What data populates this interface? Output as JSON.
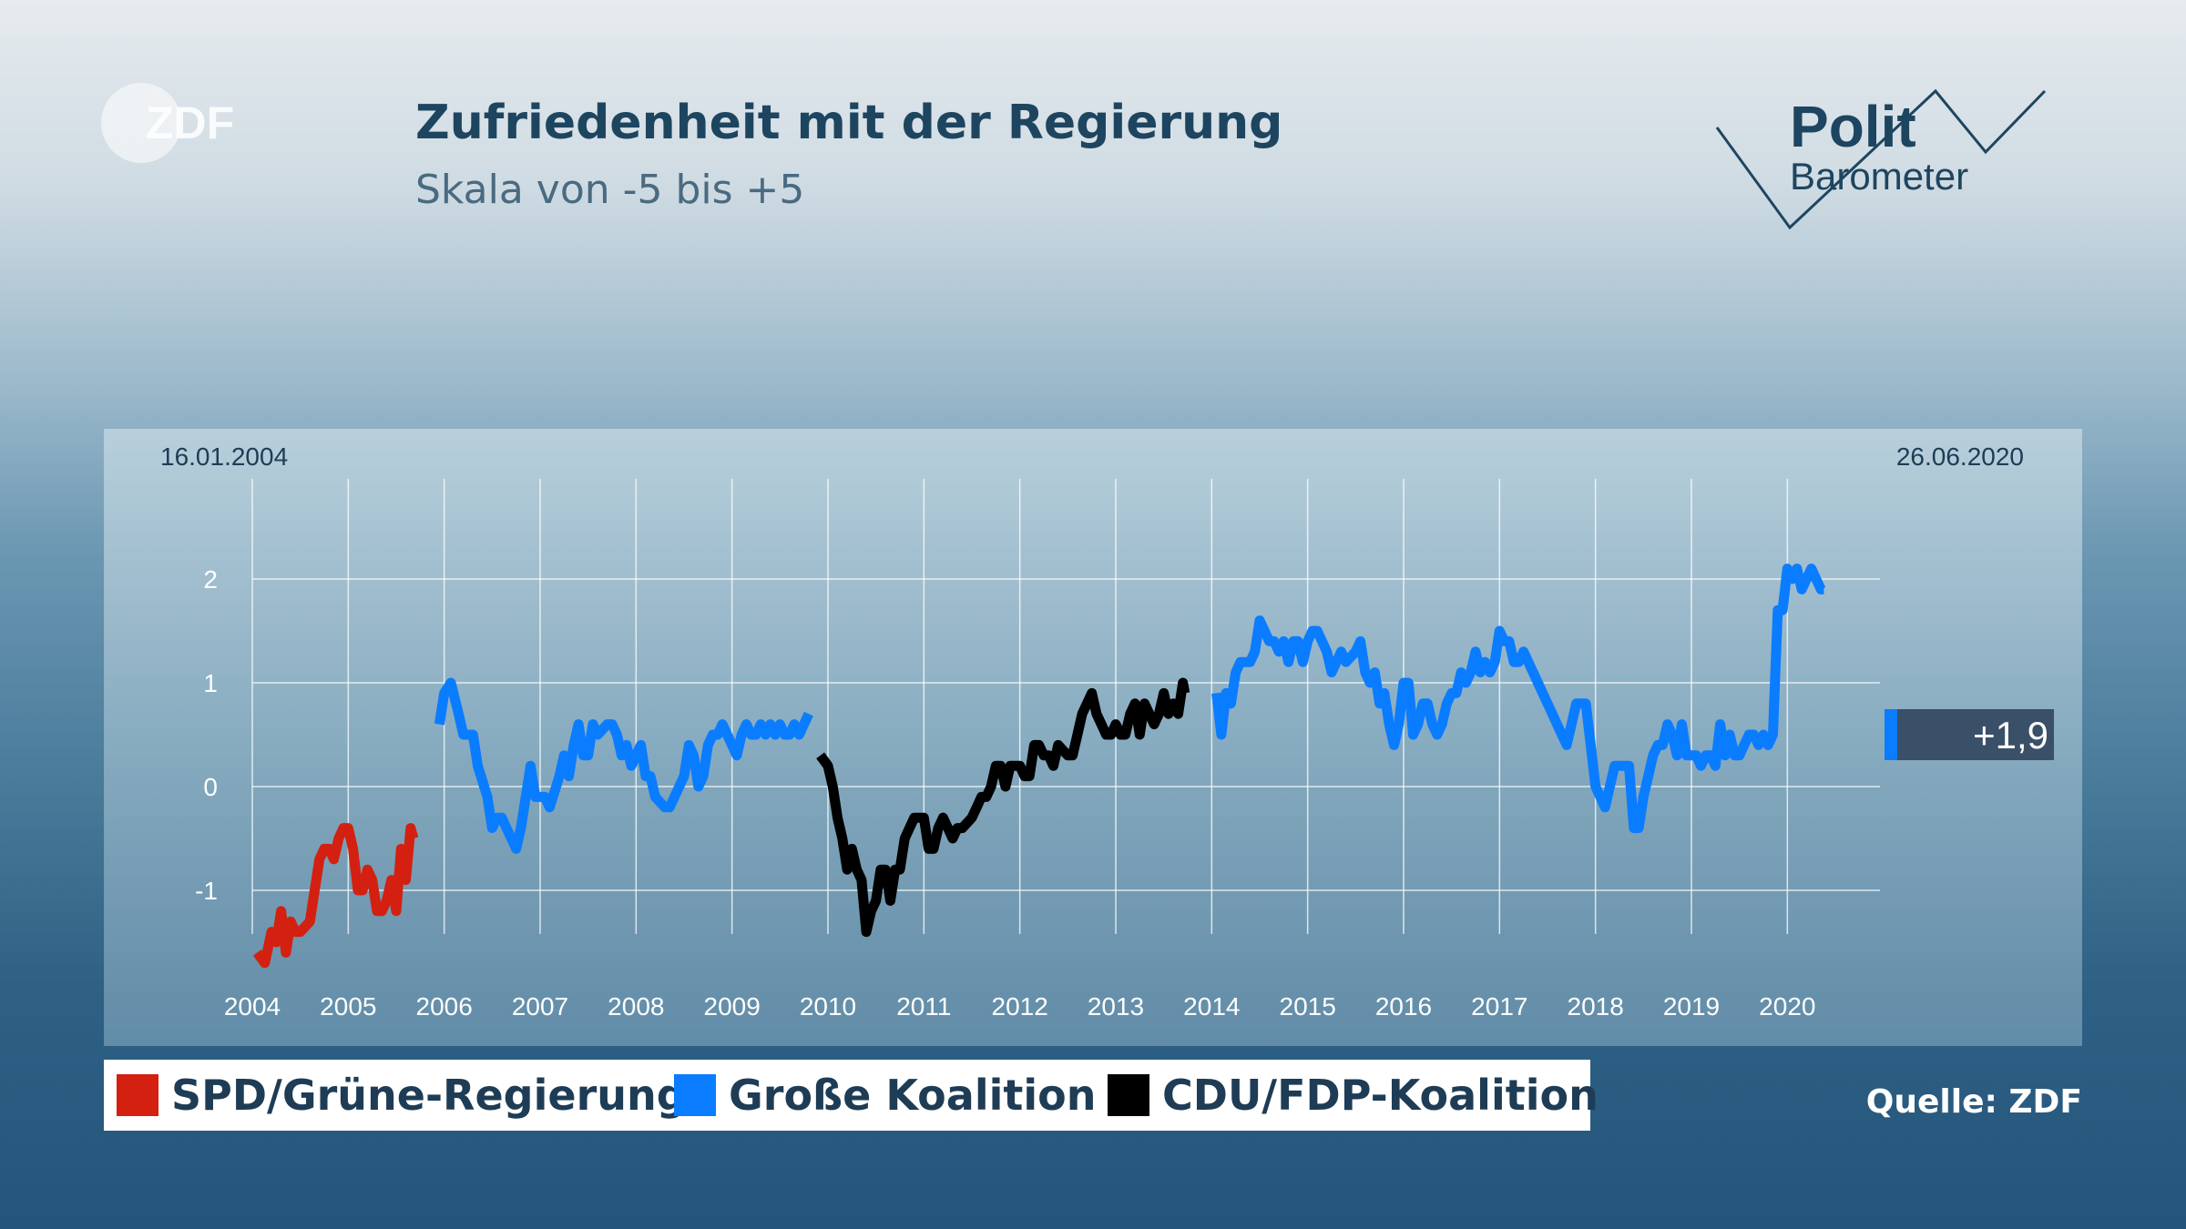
{
  "header": {
    "logo_text": "ZDF",
    "title": "Zufriedenheit mit der Regierung",
    "subtitle": "Skala von -5 bis +5"
  },
  "brand": {
    "polit": "Polit",
    "barometer": "Barometer"
  },
  "legend": [
    {
      "label": "SPD/Grüne-Regierung",
      "color": "#d42010"
    },
    {
      "label": "Große Koalition",
      "color": "#0a7cff"
    },
    {
      "label": "CDU/FDP-Koalition",
      "color": "#000000"
    }
  ],
  "source": "Quelle: ZDF",
  "chart_data": {
    "type": "line",
    "start_date_label": "16.01.2004",
    "end_date_label": "26.06.2020",
    "current_value_label": "+1,9",
    "x_ticks": [
      "2004",
      "2005",
      "2006",
      "2007",
      "2008",
      "2009",
      "2010",
      "2011",
      "2012",
      "2013",
      "2014",
      "2015",
      "2016",
      "2017",
      "2018",
      "2019",
      "2020"
    ],
    "y_ticks": [
      "2",
      "1",
      "0",
      "-1"
    ],
    "xlim": [
      2004.0,
      2020.5
    ],
    "ylim": [
      -1.8,
      2.6
    ],
    "grid": true,
    "series": [
      {
        "color": "#d42010",
        "x": [
          2004.05,
          2004.13,
          2004.2,
          2004.25,
          2004.3,
          2004.35,
          2004.4,
          2004.45,
          2004.5,
          2004.6,
          2004.7,
          2004.75,
          2004.8,
          2004.85,
          2004.9,
          2004.95,
          2005.0,
          2005.05,
          2005.1,
          2005.15,
          2005.2,
          2005.25,
          2005.3,
          2005.35,
          2005.4,
          2005.45,
          2005.5,
          2005.55,
          2005.6,
          2005.65,
          2005.68
        ],
        "values": [
          -1.6,
          -1.7,
          -1.4,
          -1.5,
          -1.2,
          -1.6,
          -1.3,
          -1.4,
          -1.4,
          -1.3,
          -0.7,
          -0.6,
          -0.6,
          -0.7,
          -0.5,
          -0.4,
          -0.4,
          -0.6,
          -1.0,
          -1.0,
          -0.8,
          -0.9,
          -1.2,
          -1.2,
          -1.1,
          -0.9,
          -1.2,
          -0.6,
          -0.9,
          -0.4,
          -0.5
        ]
      },
      {
        "color": "#0a7cff",
        "x": [
          2005.95,
          2006.0,
          2006.07,
          2006.15,
          2006.2,
          2006.3,
          2006.35,
          2006.45,
          2006.5,
          2006.55,
          2006.6,
          2006.65,
          2006.7,
          2006.75,
          2006.8,
          2006.9,
          2006.95,
          2007.0,
          2007.05,
          2007.1,
          2007.2,
          2007.25,
          2007.3,
          2007.35,
          2007.4,
          2007.45,
          2007.5,
          2007.55,
          2007.6,
          2007.7,
          2007.75,
          2007.8,
          2007.85,
          2007.9,
          2007.95,
          2008.0,
          2008.05,
          2008.1,
          2008.15,
          2008.2,
          2008.3,
          2008.35,
          2008.4,
          2008.45,
          2008.5,
          2008.55,
          2008.6,
          2008.65,
          2008.7,
          2008.75,
          2008.8,
          2008.85,
          2008.9,
          2009.0,
          2009.05,
          2009.1,
          2009.15,
          2009.2,
          2009.25,
          2009.3,
          2009.35,
          2009.4,
          2009.45,
          2009.5,
          2009.55,
          2009.6,
          2009.65,
          2009.7,
          2009.75,
          2009.8
        ],
        "values": [
          0.6,
          0.9,
          1.0,
          0.7,
          0.5,
          0.5,
          0.2,
          -0.1,
          -0.4,
          -0.3,
          -0.3,
          -0.4,
          -0.5,
          -0.6,
          -0.4,
          0.2,
          -0.1,
          -0.1,
          -0.1,
          -0.2,
          0.1,
          0.3,
          0.1,
          0.4,
          0.6,
          0.3,
          0.3,
          0.6,
          0.5,
          0.6,
          0.6,
          0.5,
          0.3,
          0.4,
          0.2,
          0.3,
          0.4,
          0.1,
          0.1,
          -0.1,
          -0.2,
          -0.2,
          -0.1,
          0.0,
          0.1,
          0.4,
          0.3,
          0.0,
          0.1,
          0.4,
          0.5,
          0.5,
          0.6,
          0.4,
          0.3,
          0.5,
          0.6,
          0.5,
          0.5,
          0.6,
          0.5,
          0.6,
          0.5,
          0.6,
          0.5,
          0.5,
          0.6,
          0.5,
          0.6,
          0.7
        ]
      },
      {
        "color": "#000000",
        "x": [
          2009.92,
          2010.0,
          2010.05,
          2010.1,
          2010.15,
          2010.2,
          2010.25,
          2010.3,
          2010.35,
          2010.4,
          2010.45,
          2010.5,
          2010.55,
          2010.6,
          2010.65,
          2010.7,
          2010.75,
          2010.8,
          2010.85,
          2010.9,
          2011.0,
          2011.05,
          2011.1,
          2011.15,
          2011.2,
          2011.25,
          2011.3,
          2011.35,
          2011.4,
          2011.5,
          2011.55,
          2011.6,
          2011.65,
          2011.7,
          2011.75,
          2011.8,
          2011.85,
          2011.9,
          2011.95,
          2012.0,
          2012.05,
          2012.1,
          2012.15,
          2012.2,
          2012.25,
          2012.3,
          2012.35,
          2012.4,
          2012.5,
          2012.55,
          2012.6,
          2012.65,
          2012.7,
          2012.75,
          2012.8,
          2012.85,
          2012.9,
          2012.95,
          2013.0,
          2013.05,
          2013.1,
          2013.15,
          2013.2,
          2013.25,
          2013.3,
          2013.35,
          2013.4,
          2013.45,
          2013.5,
          2013.55,
          2013.6,
          2013.65,
          2013.7,
          2013.72
        ],
        "values": [
          0.3,
          0.2,
          0.0,
          -0.3,
          -0.5,
          -0.8,
          -0.6,
          -0.8,
          -0.9,
          -1.4,
          -1.2,
          -1.1,
          -0.8,
          -0.8,
          -1.1,
          -0.8,
          -0.8,
          -0.5,
          -0.4,
          -0.3,
          -0.3,
          -0.6,
          -0.6,
          -0.4,
          -0.3,
          -0.4,
          -0.5,
          -0.4,
          -0.4,
          -0.3,
          -0.2,
          -0.1,
          -0.1,
          -0.0,
          0.2,
          0.2,
          0.0,
          0.2,
          0.2,
          0.2,
          0.1,
          0.1,
          0.4,
          0.4,
          0.3,
          0.3,
          0.2,
          0.4,
          0.3,
          0.3,
          0.5,
          0.7,
          0.8,
          0.9,
          0.7,
          0.6,
          0.5,
          0.5,
          0.6,
          0.5,
          0.5,
          0.7,
          0.8,
          0.5,
          0.8,
          0.7,
          0.6,
          0.7,
          0.9,
          0.7,
          0.8,
          0.7,
          1.0,
          0.9
        ]
      },
      {
        "color": "#0a7cff",
        "x": [
          2014.05,
          2014.1,
          2014.15,
          2014.2,
          2014.25,
          2014.3,
          2014.4,
          2014.45,
          2014.5,
          2014.55,
          2014.6,
          2014.65,
          2014.7,
          2014.75,
          2014.8,
          2014.85,
          2014.9,
          2014.95,
          2015.0,
          2015.05,
          2015.1,
          2015.15,
          2015.2,
          2015.25,
          2015.3,
          2015.35,
          2015.4,
          2015.5,
          2015.55,
          2015.6,
          2015.65,
          2015.7,
          2015.75,
          2015.8,
          2015.85,
          2015.9,
          2015.95,
          2016.0,
          2016.05,
          2016.1,
          2016.15,
          2016.2,
          2016.25,
          2016.3,
          2016.35,
          2016.4,
          2016.45,
          2016.5,
          2016.55,
          2016.6,
          2016.65,
          2016.7,
          2016.75,
          2016.8,
          2016.85,
          2016.9,
          2016.95,
          2017.0,
          2017.05,
          2017.1,
          2017.15,
          2017.2,
          2017.25,
          2017.3,
          2017.35,
          2017.4,
          2017.45,
          2017.5,
          2017.55,
          2017.6,
          2017.65,
          2017.7,
          2017.8,
          2017.9,
          2018.0,
          2018.1,
          2018.2,
          2018.3,
          2018.35,
          2018.4,
          2018.45,
          2018.5,
          2018.55,
          2018.6,
          2018.65,
          2018.7,
          2018.75,
          2018.8,
          2018.85,
          2018.9,
          2018.95,
          2019.0,
          2019.05,
          2019.1,
          2019.15,
          2019.2,
          2019.25,
          2019.3,
          2019.35,
          2019.4,
          2019.45,
          2019.5,
          2019.55,
          2019.6,
          2019.65,
          2019.7,
          2019.75,
          2019.8,
          2019.85,
          2019.9,
          2019.95,
          2020.0,
          2020.05,
          2020.1,
          2020.15,
          2020.2,
          2020.25,
          2020.3,
          2020.35,
          2020.38
        ],
        "values": [
          0.9,
          0.5,
          0.9,
          0.8,
          1.1,
          1.2,
          1.2,
          1.3,
          1.6,
          1.5,
          1.4,
          1.4,
          1.3,
          1.4,
          1.2,
          1.4,
          1.4,
          1.2,
          1.4,
          1.5,
          1.5,
          1.4,
          1.3,
          1.1,
          1.2,
          1.3,
          1.2,
          1.3,
          1.4,
          1.1,
          1.0,
          1.1,
          0.8,
          0.9,
          0.6,
          0.4,
          0.6,
          1.0,
          1.0,
          0.5,
          0.6,
          0.8,
          0.8,
          0.6,
          0.5,
          0.6,
          0.8,
          0.9,
          0.9,
          1.1,
          1.0,
          1.1,
          1.3,
          1.1,
          1.2,
          1.1,
          1.2,
          1.5,
          1.4,
          1.4,
          1.2,
          1.2,
          1.3,
          1.2,
          1.1,
          1.0,
          0.9,
          0.8,
          0.7,
          0.6,
          0.5,
          0.4,
          0.8,
          0.8,
          0.0,
          -0.2,
          0.2,
          0.2,
          0.2,
          -0.4,
          -0.4,
          -0.1,
          0.1,
          0.3,
          0.4,
          0.4,
          0.6,
          0.5,
          0.3,
          0.6,
          0.3,
          0.3,
          0.3,
          0.2,
          0.3,
          0.3,
          0.2,
          0.6,
          0.3,
          0.5,
          0.3,
          0.3,
          0.4,
          0.5,
          0.5,
          0.4,
          0.5,
          0.4,
          0.5,
          1.7,
          1.7,
          2.1,
          2.0,
          2.1,
          1.9,
          2.0,
          2.1,
          2.0,
          1.9,
          1.9
        ]
      }
    ]
  }
}
